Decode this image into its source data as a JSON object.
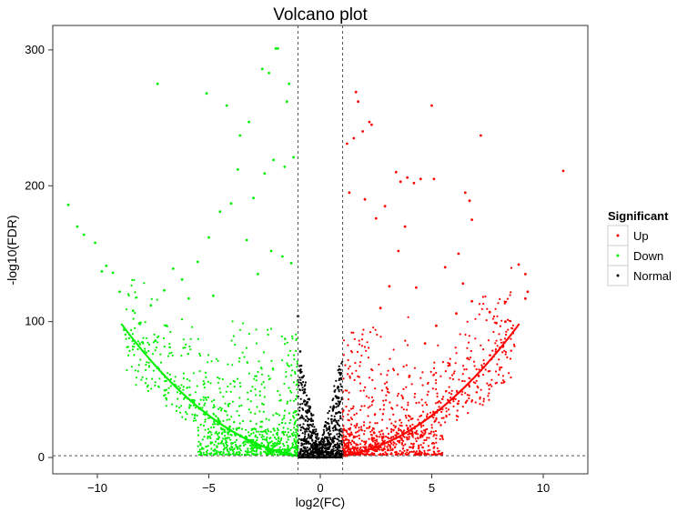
{
  "chart_data": {
    "type": "scatter",
    "title": "Volcano plot",
    "xlabel": "log2(FC)",
    "ylabel": "-log10(FDR)",
    "xlim": [
      -12,
      12
    ],
    "ylim": [
      -12,
      318
    ],
    "x_ticks": [
      -10,
      -5,
      0,
      5,
      10
    ],
    "x_tick_labels": [
      "−10",
      "−5",
      "0",
      "5",
      "10"
    ],
    "y_ticks": [
      0,
      100,
      200,
      300
    ],
    "y_tick_labels": [
      "0",
      "100",
      "200",
      "300"
    ],
    "threshold_lines": {
      "x": [
        -1,
        1
      ],
      "y": 1.3
    },
    "legend": {
      "title": "Significant",
      "position": "right",
      "entries": [
        {
          "label": "Up",
          "color": "#ff0000"
        },
        {
          "label": "Down",
          "color": "#00ee00"
        },
        {
          "label": "Normal",
          "color": "#000000"
        }
      ]
    },
    "grid": false,
    "series": [
      {
        "name": "Up",
        "color": "#ff0000",
        "points": [
          [
            10.9,
            211
          ],
          [
            7.2,
            237
          ],
          [
            5.0,
            259
          ],
          [
            6.5,
            195
          ],
          [
            5.1,
            205
          ],
          [
            6.7,
            189
          ],
          [
            6.8,
            175
          ],
          [
            8.9,
            142
          ],
          [
            9.2,
            135
          ],
          [
            9.2,
            117
          ],
          [
            9.3,
            122
          ],
          [
            8.2,
            82
          ],
          [
            8.3,
            100
          ],
          [
            7.9,
            99
          ],
          [
            4.5,
            205
          ],
          [
            4.2,
            202
          ],
          [
            3.4,
            210
          ],
          [
            3.6,
            203
          ],
          [
            3.9,
            206
          ],
          [
            2.9,
            185
          ],
          [
            2.3,
            245
          ],
          [
            2.2,
            247
          ],
          [
            1.9,
            240
          ],
          [
            1.6,
            269
          ],
          [
            1.7,
            262
          ],
          [
            1.5,
            235
          ],
          [
            1.2,
            231
          ],
          [
            1.3,
            195
          ],
          [
            2.0,
            190
          ],
          [
            2.5,
            176
          ],
          [
            3.5,
            152
          ],
          [
            3.8,
            170
          ],
          [
            4.3,
            125
          ],
          [
            5.6,
            140
          ],
          [
            6.2,
            150
          ],
          [
            6.4,
            128
          ],
          [
            6.8,
            115
          ],
          [
            7.6,
            107
          ],
          [
            6.1,
            106
          ],
          [
            5.2,
            97
          ],
          [
            4.7,
            84
          ],
          [
            5.8,
            68
          ],
          [
            6.6,
            73
          ],
          [
            7.1,
            60
          ],
          [
            4.0,
            60
          ],
          [
            3.1,
            126
          ],
          [
            2.7,
            110
          ]
        ]
      },
      {
        "name": "Down",
        "color": "#00ee00",
        "points": [
          [
            -11.3,
            186
          ],
          [
            -10.9,
            170
          ],
          [
            -10.6,
            164
          ],
          [
            -10.1,
            158
          ],
          [
            -9.8,
            137
          ],
          [
            -9.6,
            141
          ],
          [
            -9.3,
            136
          ],
          [
            -7.3,
            275
          ],
          [
            -5.1,
            268
          ],
          [
            -4.2,
            259
          ],
          [
            -3.6,
            237
          ],
          [
            -3.2,
            247
          ],
          [
            -2.6,
            286
          ],
          [
            -2.3,
            283
          ],
          [
            -2.0,
            301
          ],
          [
            -1.9,
            301
          ],
          [
            -1.5,
            262
          ],
          [
            -1.4,
            275
          ],
          [
            -1.2,
            221
          ],
          [
            -1.6,
            214
          ],
          [
            -2.1,
            219
          ],
          [
            -2.5,
            209
          ],
          [
            -3.0,
            191
          ],
          [
            -3.7,
            212
          ],
          [
            -4.0,
            187
          ],
          [
            -4.5,
            181
          ],
          [
            -5.0,
            162
          ],
          [
            -5.5,
            144
          ],
          [
            -5.9,
            117
          ],
          [
            -6.2,
            131
          ],
          [
            -6.6,
            139
          ],
          [
            -7.0,
            123
          ],
          [
            -7.6,
            112
          ],
          [
            -8.1,
            99
          ],
          [
            -8.4,
            108
          ],
          [
            -8.8,
            94
          ],
          [
            -9.0,
            122
          ],
          [
            -3.3,
            160
          ],
          [
            -2.8,
            135
          ],
          [
            -2.2,
            152
          ],
          [
            -1.7,
            148
          ],
          [
            -1.3,
            143
          ],
          [
            -4.8,
            119
          ],
          [
            -6.9,
            97
          ],
          [
            -7.4,
            86
          ]
        ]
      },
      {
        "name": "Normal",
        "color": "#000000",
        "points": [
          [
            -1.0,
            104
          ],
          [
            -0.9,
            78
          ],
          [
            -0.8,
            59
          ],
          [
            -0.7,
            50
          ],
          [
            -0.6,
            40
          ],
          [
            -0.5,
            34
          ],
          [
            -0.4,
            27
          ],
          [
            -0.3,
            18
          ],
          [
            -0.2,
            12
          ],
          [
            -0.1,
            6
          ],
          [
            0.0,
            2
          ],
          [
            0.1,
            5
          ],
          [
            0.2,
            9
          ],
          [
            0.3,
            14
          ],
          [
            0.4,
            22
          ],
          [
            0.5,
            28
          ],
          [
            0.6,
            37
          ],
          [
            0.7,
            45
          ],
          [
            0.8,
            52
          ],
          [
            0.9,
            61
          ]
        ]
      }
    ]
  }
}
